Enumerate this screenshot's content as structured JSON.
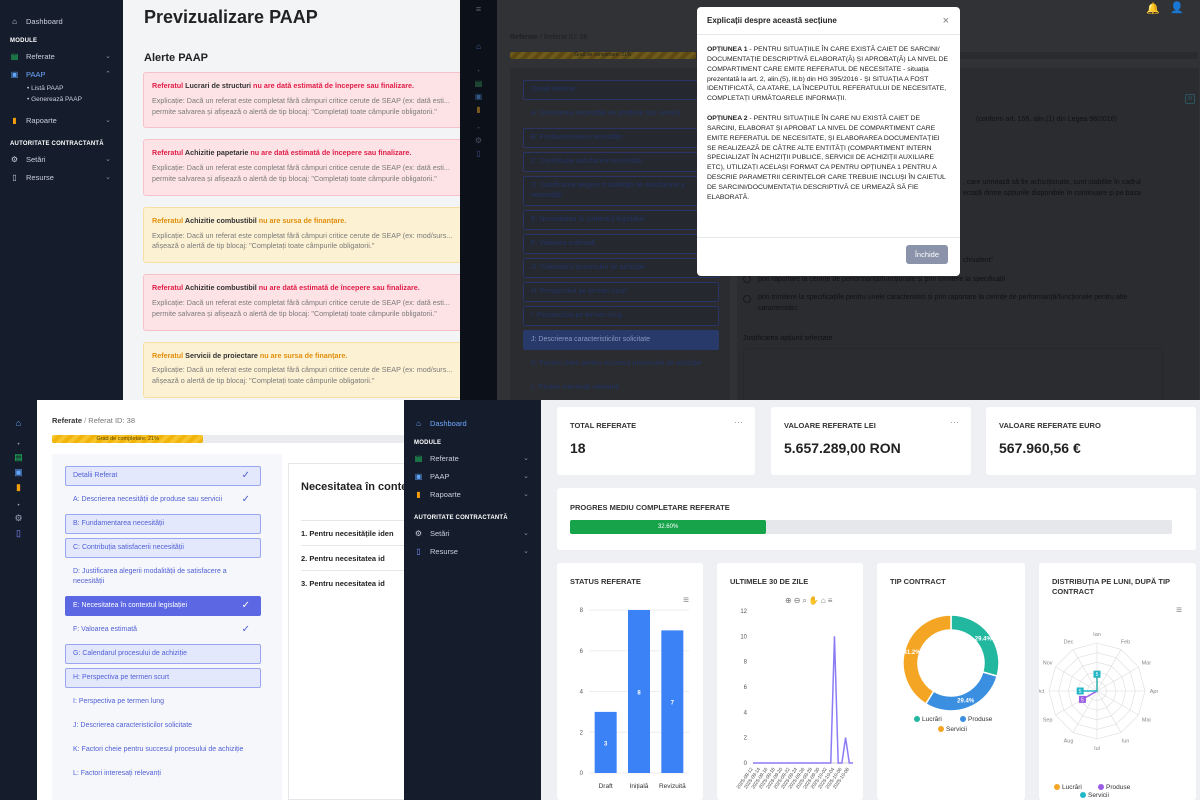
{
  "tl": {
    "sidebar": {
      "dashboard": "Dashboard",
      "modules_heading": "MODULE",
      "referate": "Referate",
      "paap": "PAAP",
      "lista_paap": "Listă PAAP",
      "genereaza_paap": "Generează PAAP",
      "rapoarte": "Rapoarte",
      "authority_heading": "AUTORITATE CONTRACTANTĂ",
      "setari": "Setări",
      "resurse": "Resurse"
    },
    "page_title": "Previzualizare PAAP",
    "section_title": "Alerte PAAP",
    "alerts": [
      {
        "type": "red",
        "pre": "Referatul ",
        "name": "Lucrari de structuri",
        "post": " nu are dată estimată de începere sau finalizare.",
        "body": "Explicație: Dacă un referat este completat fără câmpuri critice cerute de SEAP (ex: dată esti... permite salvarea și afișează o alertă de tip blocaj: \"Completați toate câmpurile obligatorii.\""
      },
      {
        "type": "red",
        "pre": "Referatul ",
        "name": "Achizitie papetarie",
        "post": " nu are dată estimată de începere sau finalizare.",
        "body": "Explicație: Dacă un referat este completat fără câmpuri critice cerute de SEAP (ex: dată esti... permite salvarea și afișează o alertă de tip blocaj: \"Completați toate câmpurile obligatorii.\""
      },
      {
        "type": "yellow",
        "pre": "Referatul ",
        "name": "Achizitie combustibil",
        "post": " nu are sursa de finanțare.",
        "body": "Explicație: Dacă un referat este completat fără câmpuri critice cerute de SEAP (ex: mod/surs... afișează o alertă de tip blocaj: \"Completați toate câmpurile obligatorii.\""
      },
      {
        "type": "red",
        "pre": "Referatul ",
        "name": "Achizitie combustibil",
        "post": " nu are dată estimată de începere sau finalizare.",
        "body": "Explicație: Dacă un referat este completat fără câmpuri critice cerute de SEAP (ex: dată esti... permite salvarea și afișează o alertă de tip blocaj: \"Completați toate câmpurile obligatorii.\""
      },
      {
        "type": "yellow",
        "pre": "Referatul ",
        "name": "Servicii de proiectare",
        "post": " nu are sursa de finanțare.",
        "body": "Explicație: Dacă un referat este completat fără câmpuri critice cerute de SEAP (ex: mod/surs... afișează o alertă de tip blocaj: \"Completați toate câmpurile obligatorii.\""
      }
    ]
  },
  "tr": {
    "breadcrumb_root": "Referate",
    "breadcrumb_sep": "/",
    "breadcrumb_id": "Referat ID: 38",
    "progress_label": "Grad de completare: 21%",
    "progress": 0.21,
    "nav": [
      "Detalii Referat",
      "A: Descrierea necesității de produse sau servicii",
      "B: Fundamentarea necesității",
      "C: Contribuția satisfacerii necesității",
      "D: Justificarea alegerii modalității de satisfacere a necesității",
      "E: Necesitatea în contextul legislației",
      "F: Valoarea estimată",
      "G: Calendarul procesului de achiziție",
      "H: Perspectiva pe termen scurt",
      "I: Perspectiva pe termen lung",
      "J: Descrierea caracteristicilor solicitate",
      "K: Factori cheie pentru succesul procesului de achiziție",
      "L: Factori interesați relevanți"
    ],
    "behind_text": {
      "line1": "(conform art. 156, alin.(1) din Legea 98/2016)",
      "line2": ", care urmează să fie achiziționate, sunt stabilite în cadrul",
      "line3": "ectată dintre opțiunile disponibile în continuare și pe baza",
      "line4": "chivalent\"",
      "opt1": "prin raportare la cerințe de performanță/funcționale și prin trimitere la specificații",
      "opt2": "prin trimitere la specificațiile pentru unele caracteristici și prin raportare la cerințe de performanță/funcționale pentru alte caracteristici",
      "justif": "Justificarea opțiunii selectate"
    },
    "modal": {
      "title": "Explicații despre această secțiune",
      "close": "×",
      "opt1_label": "OPȚIUNEA 1",
      "opt1_text": " - PENTRU SITUAȚIILE ÎN CARE EXISTĂ CAIET DE SARCINI/ DOCUMENTAȚIE DESCRIPTIVĂ ELABORAT(Ă) ȘI APROBAT(Ă) LA NIVEL DE COMPARTIMENT CARE EMITE REFERATUL DE NECESITATE - situația prezentată la art. 2, alin.(5), lit.b) din HG 395/2016 - ȘI SITUAȚIA A FOST IDENTIFICATĂ, CA ATARE, LA ÎNCEPUTUL REFERATULUI DE NECESITATE, COMPLETAȚI URMĂTOARELE INFORMAȚII.",
      "opt2_label": "OPȚIUNEA 2",
      "opt2_text": " - PENTRU SITUAȚIILE ÎN CARE NU EXISTĂ CAIET DE SARCINI, ELABORAT ȘI APROBAT LA NIVEL DE COMPARTIMENT CARE EMITE REFERATUL DE NECESITATE, ȘI ELABORAREA DOCUMENTAȚIEI SE REALIZEAZĂ DE CĂTRE ALTE ENTITĂȚI (COMPARTIMENT INTERN SPECIALIZAT ÎN ACHIZIȚII PUBLICE, SERVICII DE ACHIZIȚII AUXILIARE ETC), UTILIZAȚI ACELAȘI FORMAT CA PENTRU OPȚIUNEA 1 PENTRU A DESCRIE PARAMETRII CERINȚELOR CARE TREBUIE INCLUȘI ÎN CAIETUL DE SARCINI/DOCUMENTAȚIA DESCRIPTIVĂ CE URMEAZĂ SĂ FIE ELABORATĂ.",
      "button": "Închide"
    }
  },
  "bl": {
    "breadcrumb_root": "Referate",
    "breadcrumb_sep": "/",
    "breadcrumb_id": "Referat ID: 38",
    "progress_label": "Grad de completare: 21%",
    "progress": 0.21,
    "section_title": "Necesitatea în conte",
    "questions": [
      "1. Pentru necesitățile iden",
      "2. Pentru necesitatea id",
      "3. Pentru necesitatea id"
    ]
  },
  "br": {
    "sidebar": {
      "dashboard": "Dashboard",
      "modules_heading": "MODULE",
      "referate": "Referate",
      "paap": "PAAP",
      "rapoarte": "Rapoarte",
      "authority_heading": "AUTORITATE CONTRACTANTĂ",
      "setari": "Setări",
      "resurse": "Resurse"
    },
    "kpi": [
      {
        "label": "TOTAL REFERATE",
        "value": "18"
      },
      {
        "label": "VALOARE REFERATE LEI",
        "value": "5.657.289,00 RON"
      },
      {
        "label": "VALOARE REFERATE EURO",
        "value": "567.960,56 €"
      }
    ],
    "progress_title": "PROGRES MEDIU COMPLETARE REFERATE",
    "progress_label": "32.60%",
    "progress": 0.326,
    "status_title": "STATUS REFERATE",
    "last30_title": "ULTIMELE 30 DE ZILE",
    "tip_title": "TIP CONTRACT",
    "dist_title": "DISTRIBUȚIA PE LUNI, DUPĂ TIP CONTRACT",
    "tip_legend": [
      "Lucrări",
      "Produse",
      "Servicii"
    ],
    "dist_legend": [
      "Lucrări",
      "Produse",
      "Servicii"
    ],
    "months": [
      "Ian",
      "Feb",
      "Mar",
      "Apr",
      "Mai",
      "Iun",
      "Iul",
      "Aug",
      "Sep",
      "Oct",
      "Nov",
      "Dec"
    ]
  },
  "chart_data": [
    {
      "type": "bar",
      "title": "STATUS REFERATE",
      "categories": [
        "Draft",
        "Inițială",
        "Revizuită"
      ],
      "values": [
        3,
        8,
        7
      ],
      "ylim": [
        0,
        8
      ],
      "yticks": [
        0,
        2,
        4,
        6,
        8
      ],
      "color": "#3b82f6"
    },
    {
      "type": "line",
      "title": "ULTIMELE 30 DE ZILE",
      "x": [
        "2025-09-12",
        "2025-09-13",
        "2025-09-14",
        "2025-09-15",
        "2025-09-16",
        "2025-09-17",
        "2025-09-18",
        "2025-09-19",
        "2025-09-20",
        "2025-09-21",
        "2025-09-22",
        "2025-09-23",
        "2025-09-24",
        "2025-09-25",
        "2025-09-26",
        "2025-09-27",
        "2025-09-28",
        "2025-09-29",
        "2025-09-30",
        "2025-10-01",
        "2025-10-02",
        "2025-10-03",
        "2025-10-04",
        "2025-10-05",
        "2025-10-06",
        "2025-10-07",
        "2025-10-08",
        "2025-10-09"
      ],
      "values": [
        0,
        0,
        0,
        0,
        0,
        0,
        0,
        0,
        0,
        0,
        0,
        0,
        0,
        0,
        0,
        0,
        0,
        0,
        0,
        0,
        0,
        0,
        10,
        0,
        0,
        2,
        0,
        0
      ],
      "ylim": [
        0,
        12
      ],
      "yticks": [
        0,
        2,
        4,
        6,
        8,
        10,
        12
      ],
      "color": "#8b7cf6"
    },
    {
      "type": "pie",
      "title": "TIP CONTRACT",
      "labels": [
        "Lucrări",
        "Produse",
        "Servicii"
      ],
      "values": [
        29.4,
        29.4,
        41.2
      ],
      "colors": [
        "#22b8a0",
        "#3b8fe0",
        "#f5a524"
      ]
    },
    {
      "type": "radar",
      "title": "DISTRIBUȚIA PE LUNI, DUPĂ TIP CONTRACT",
      "categories": [
        "Ian",
        "Feb",
        "Mar",
        "Apr",
        "Mai",
        "Iun",
        "Iul",
        "Aug",
        "Sep",
        "Oct",
        "Nov",
        "Dec"
      ],
      "series": [
        {
          "name": "Lucrări",
          "values": [
            5,
            0,
            0,
            0,
            0,
            0,
            0,
            0,
            0,
            0,
            0,
            0
          ],
          "color": "#f5a524"
        },
        {
          "name": "Produse",
          "values": [
            0,
            0,
            0,
            0,
            0,
            0,
            0,
            0,
            5,
            0,
            0,
            0
          ],
          "color": "#9b5de5"
        },
        {
          "name": "Servicii",
          "values": [
            5,
            0,
            0,
            0,
            0,
            0,
            0,
            0,
            0,
            5,
            0,
            0
          ],
          "color": "#22b8c8"
        }
      ]
    }
  ]
}
